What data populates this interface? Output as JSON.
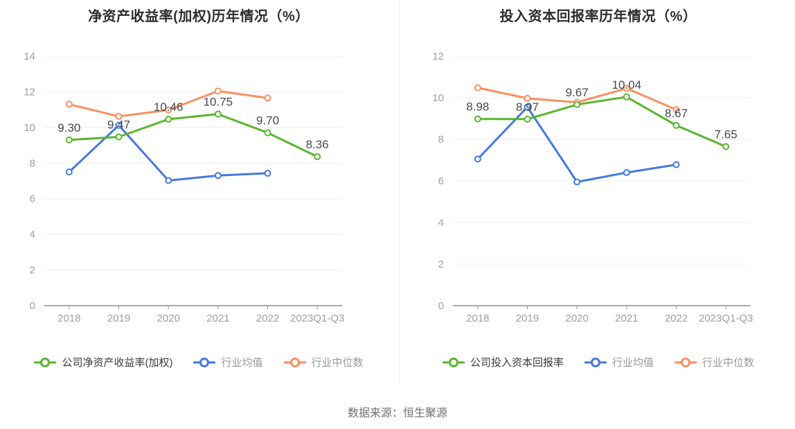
{
  "page": {
    "source_note": "数据来源：恒生聚源"
  },
  "colors": {
    "company": "#5ab52d",
    "industry_avg": "#4379e2",
    "industry_median": "#fa8f5f",
    "grid": "#e9eef6",
    "axis_line": "#8a9097",
    "tick_label": "#9aa0a8",
    "data_label": "#45494e",
    "legend_active": "#3a3a3a",
    "legend_muted": "#999999"
  },
  "chart_data": [
    {
      "type": "line",
      "title": "净资产收益率(加权)历年情况（%）",
      "categories": [
        "2018",
        "2019",
        "2020",
        "2021",
        "2022",
        "2023Q1-Q3"
      ],
      "ylim": [
        0,
        14
      ],
      "ytick_step": 2,
      "grid": true,
      "legend_position": "bottom",
      "series": [
        {
          "name": "公司净资产收益率(加权)",
          "color_key": "company",
          "values": [
            9.3,
            9.47,
            10.46,
            10.75,
            9.7,
            8.36
          ],
          "labels": [
            "9.30",
            "9.47",
            "10.46",
            "10.75",
            "9.70",
            "8.36"
          ]
        },
        {
          "name": "行业均值",
          "color_key": "industry_avg",
          "values": [
            7.5,
            10.12,
            7.02,
            7.3,
            7.43
          ]
        },
        {
          "name": "行业中位数",
          "color_key": "industry_median",
          "values": [
            11.3,
            10.62,
            10.98,
            12.04,
            11.65
          ]
        }
      ]
    },
    {
      "type": "line",
      "title": "投入资本回报率历年情况（%）",
      "categories": [
        "2018",
        "2019",
        "2020",
        "2021",
        "2022",
        "2023Q1-Q3"
      ],
      "ylim": [
        0,
        12
      ],
      "ytick_step": 2,
      "grid": true,
      "legend_position": "bottom",
      "series": [
        {
          "name": "公司投入资本回报率",
          "color_key": "company",
          "values": [
            8.98,
            8.97,
            9.67,
            10.04,
            8.67,
            7.65
          ],
          "labels": [
            "8.98",
            "8.97",
            "9.67",
            "10.04",
            "8.67",
            "7.65"
          ]
        },
        {
          "name": "行业均值",
          "color_key": "industry_avg",
          "values": [
            7.05,
            9.55,
            5.95,
            6.4,
            6.78
          ]
        },
        {
          "name": "行业中位数",
          "color_key": "industry_median",
          "values": [
            10.48,
            9.97,
            9.78,
            10.45,
            9.43
          ]
        }
      ]
    }
  ]
}
